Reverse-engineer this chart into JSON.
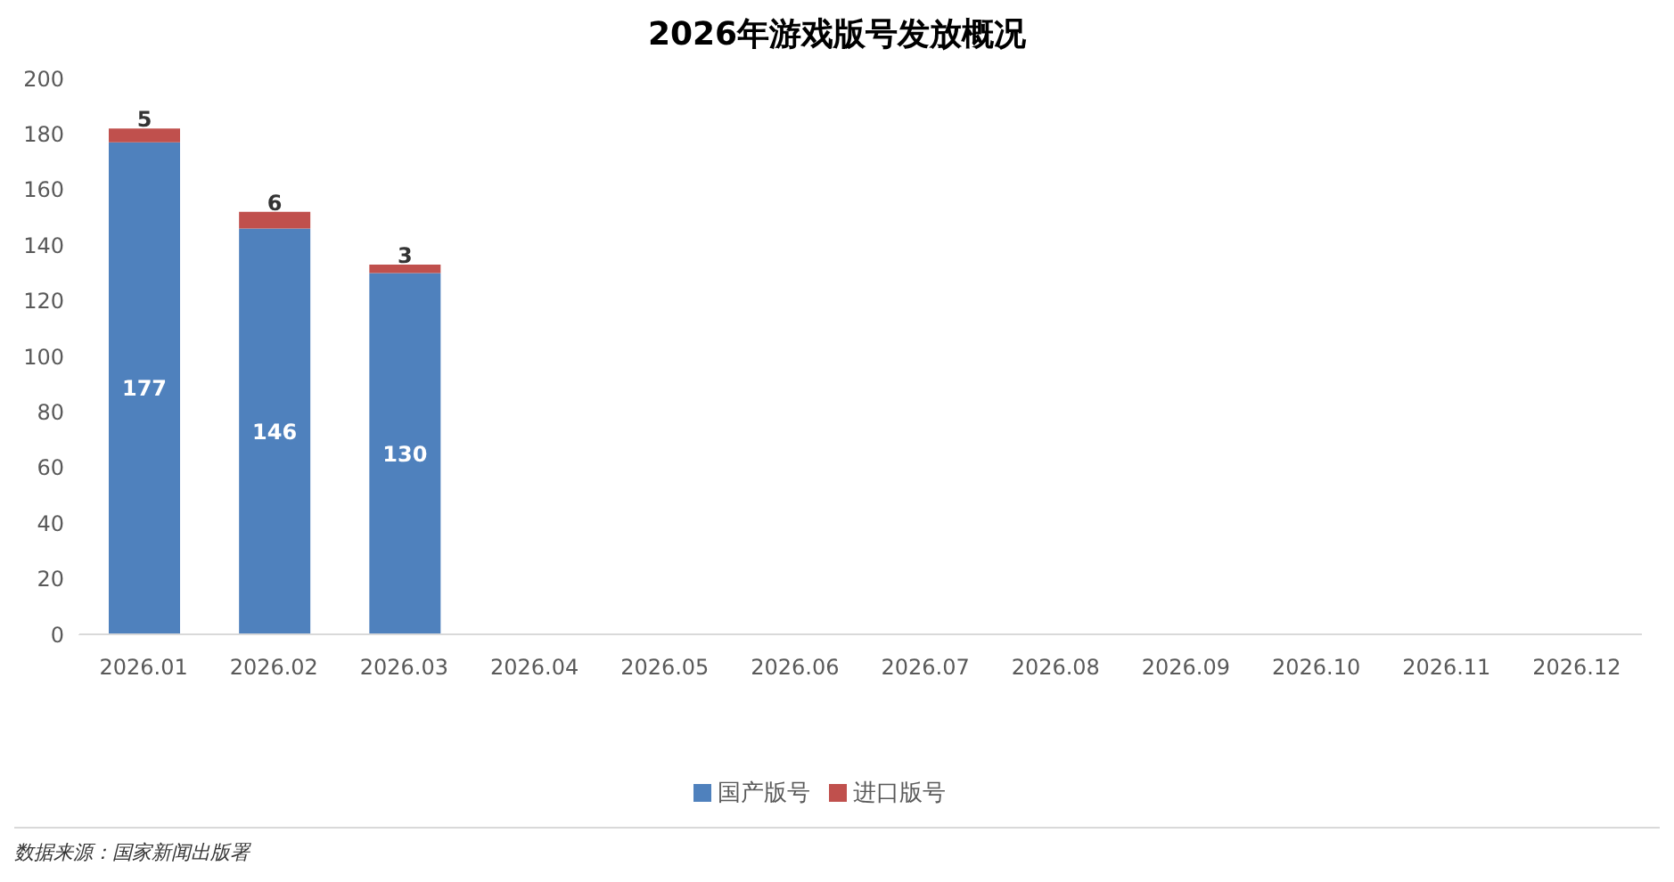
{
  "chart_data": {
    "type": "bar",
    "title": "2026年游戏版号发放概况",
    "categories": [
      "2026.01",
      "2026.02",
      "2026.03",
      "2026.04",
      "2026.05",
      "2026.06",
      "2026.07",
      "2026.08",
      "2026.09",
      "2026.10",
      "2026.11",
      "2026.12"
    ],
    "series": [
      {
        "name": "国产版号",
        "color": "#4f81bd",
        "values": [
          177,
          146,
          130,
          null,
          null,
          null,
          null,
          null,
          null,
          null,
          null,
          null
        ]
      },
      {
        "name": "进口版号",
        "color": "#c0504d",
        "values": [
          5,
          6,
          3,
          null,
          null,
          null,
          null,
          null,
          null,
          null,
          null,
          null
        ]
      }
    ],
    "stacked": true,
    "ylim": [
      0,
      200
    ],
    "yticks": [
      0,
      20,
      40,
      60,
      80,
      100,
      120,
      140,
      160,
      180,
      200
    ],
    "grid": false,
    "legend": "bottom",
    "data_labels": true,
    "annotations": [
      "数据来源：国家新闻出版署"
    ]
  }
}
